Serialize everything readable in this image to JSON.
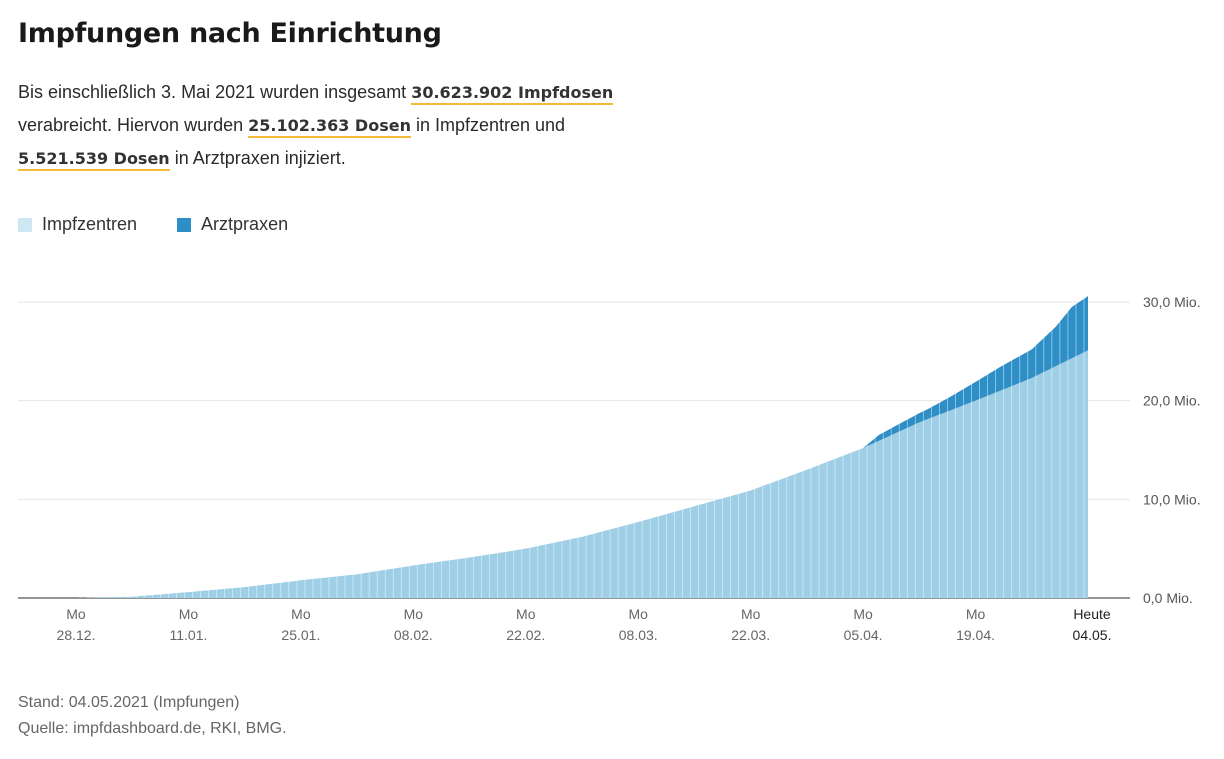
{
  "title": "Impfungen nach Einrichtung",
  "intro": {
    "part1": "Bis einschließlich 3. Mai 2021 wurden insgesamt",
    "total": "30.623.902 Impfdosen",
    "part2": "verabreicht. Hiervon wurden",
    "zentren": "25.102.363 Dosen",
    "part3": "in Impfzentren und",
    "praxen": "5.521.539 Dosen",
    "part4": "in Arztpraxen injiziert."
  },
  "colors": {
    "impfzentren": "#9fcfe6",
    "arztpraxen": "#2e8fc7",
    "highlight": "#f4bb3b"
  },
  "legend": [
    "Impfzentren",
    "Arztpraxen"
  ],
  "chart_data": {
    "type": "area",
    "stacked": true,
    "unit": "Mio.",
    "ylim": [
      0,
      30
    ],
    "yticks": [
      {
        "value": 0,
        "label": "0,0 Mio."
      },
      {
        "value": 10,
        "label": "10,0 Mio."
      },
      {
        "value": 20,
        "label": "20,0 Mio."
      },
      {
        "value": 30,
        "label": "30,0 Mio."
      }
    ],
    "xticks": [
      {
        "day": 0,
        "top": "Mo",
        "bottom": "28.12."
      },
      {
        "day": 14,
        "top": "Mo",
        "bottom": "11.01."
      },
      {
        "day": 28,
        "top": "Mo",
        "bottom": "25.01."
      },
      {
        "day": 42,
        "top": "Mo",
        "bottom": "08.02."
      },
      {
        "day": 56,
        "top": "Mo",
        "bottom": "22.02."
      },
      {
        "day": 70,
        "top": "Mo",
        "bottom": "08.03."
      },
      {
        "day": 84,
        "top": "Mo",
        "bottom": "22.03."
      },
      {
        "day": 98,
        "top": "Mo",
        "bottom": "05.04."
      },
      {
        "day": 112,
        "top": "Mo",
        "bottom": "19.04."
      },
      {
        "day": 127,
        "top": "Heute",
        "bottom": "04.05."
      }
    ],
    "x_start": "27.12.2020",
    "x_end": "03.05.2021",
    "series": [
      {
        "name": "Impfzentren",
        "knots": [
          [
            0,
            0
          ],
          [
            7,
            0.13
          ],
          [
            14,
            0.6
          ],
          [
            21,
            1.1
          ],
          [
            28,
            1.8
          ],
          [
            35,
            2.4
          ],
          [
            42,
            3.3
          ],
          [
            49,
            4.1
          ],
          [
            56,
            5.0
          ],
          [
            63,
            6.2
          ],
          [
            70,
            7.7
          ],
          [
            77,
            9.3
          ],
          [
            84,
            10.9
          ],
          [
            91,
            13.0
          ],
          [
            98,
            15.2
          ],
          [
            105,
            17.8
          ],
          [
            112,
            20.0
          ],
          [
            119,
            22.3
          ],
          [
            126,
            25.1
          ]
        ]
      },
      {
        "name": "Arztpraxen",
        "knots": [
          [
            0,
            0
          ],
          [
            98,
            0
          ],
          [
            99,
            0.3
          ],
          [
            100,
            0.6
          ],
          [
            103,
            0.8
          ],
          [
            106,
            1.0
          ],
          [
            109,
            1.4
          ],
          [
            112,
            1.9
          ],
          [
            115,
            2.4
          ],
          [
            119,
            2.9
          ],
          [
            122,
            4.0
          ],
          [
            124,
            5.2
          ],
          [
            126,
            5.5
          ]
        ]
      }
    ]
  },
  "footer": {
    "stand": "Stand: 04.05.2021 (Impfungen)",
    "quelle": "Quelle: impfdashboard.de, RKI, BMG."
  }
}
